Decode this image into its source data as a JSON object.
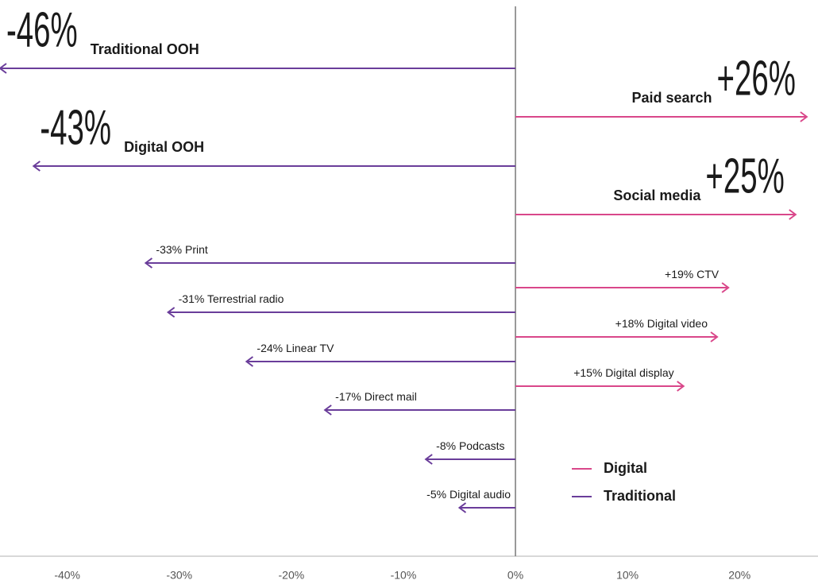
{
  "chart_data": {
    "type": "arrow-bar",
    "categories": [
      "Traditional OOH",
      "Paid search",
      "Digital OOH",
      "Social media",
      "Print",
      "CTV",
      "Terrestrial radio",
      "Digital video",
      "Linear TV",
      "Digital display",
      "Direct mail",
      "Podcasts",
      "Digital audio"
    ],
    "series": [
      {
        "name": "Digital",
        "color": "#d9478a",
        "values": [
          null,
          26,
          null,
          25,
          null,
          19,
          null,
          18,
          null,
          15,
          null,
          null,
          null
        ],
        "value_labels": [
          null,
          "+26%",
          null,
          "+25%",
          null,
          "+19%",
          null,
          "+18%",
          null,
          "+15%",
          null,
          null,
          null
        ]
      },
      {
        "name": "Traditional",
        "color": "#6a3d9a",
        "values": [
          -46,
          null,
          -43,
          null,
          -33,
          null,
          -31,
          null,
          -24,
          null,
          -17,
          -8,
          -5
        ],
        "value_labels": [
          "-46%",
          null,
          "-43%",
          null,
          "-33%",
          null,
          "-31%",
          null,
          "-24%",
          null,
          "-17%",
          "-8%",
          "-5%"
        ]
      }
    ],
    "xlim": [
      -46,
      27
    ],
    "xticks": [
      {
        "value": -40,
        "label": "-40%"
      },
      {
        "value": -30,
        "label": "-30%"
      },
      {
        "value": -20,
        "label": "-20%"
      },
      {
        "value": -10,
        "label": "-10%"
      },
      {
        "value": 0,
        "label": "0%"
      },
      {
        "value": 10,
        "label": "10%"
      },
      {
        "value": 20,
        "label": "20%"
      }
    ]
  }
}
